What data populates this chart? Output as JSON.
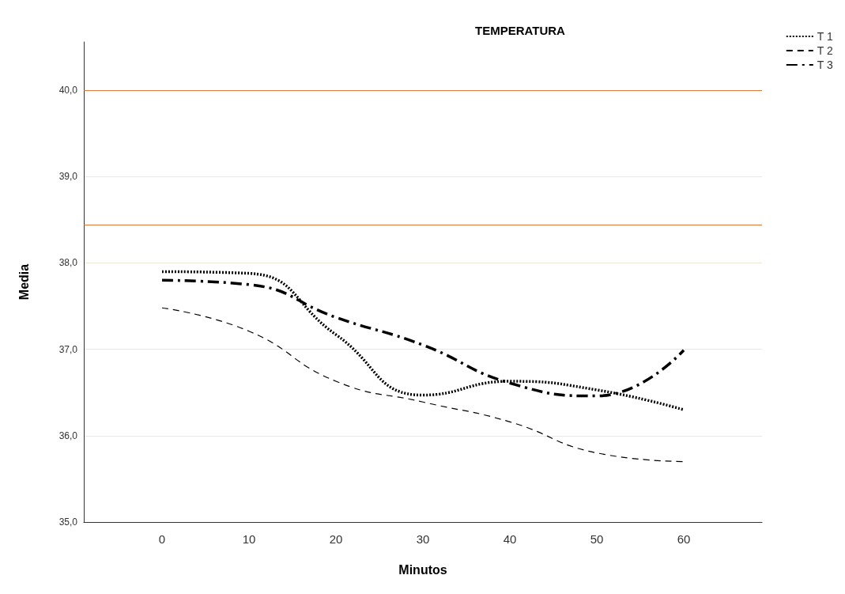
{
  "chart_data": {
    "type": "line",
    "title": "TEMPERATURA",
    "xlabel": "Minutos",
    "ylabel": "Media",
    "x": [
      0,
      10,
      20,
      30,
      40,
      50,
      60
    ],
    "series": [
      {
        "name": "T 1",
        "color": "#000000",
        "line_style": "dotted",
        "values": [
          37.9,
          37.88,
          37.17,
          36.47,
          36.63,
          36.53,
          36.3
        ]
      },
      {
        "name": "T 2",
        "color": "#000000",
        "line_style": "dashed",
        "values": [
          37.48,
          37.21,
          36.63,
          36.39,
          36.16,
          35.8,
          35.7
        ]
      },
      {
        "name": "T 3",
        "color": "#000000",
        "line_style": "dashdot",
        "values": [
          37.8,
          37.75,
          37.37,
          37.05,
          36.61,
          36.46,
          36.99
        ]
      }
    ],
    "xlim": [
      -9,
      69
    ],
    "xticks": [
      0,
      10,
      20,
      30,
      40,
      50,
      60
    ],
    "ylim": [
      35,
      40.56
    ],
    "yticks": [
      {
        "value": 35,
        "label": "35,0"
      },
      {
        "value": 36,
        "label": "36,0"
      },
      {
        "value": 37,
        "label": "37,0"
      },
      {
        "value": 38,
        "label": "38,0"
      },
      {
        "value": 39,
        "label": "39,0"
      },
      {
        "value": 40,
        "label": "40,0"
      }
    ],
    "ref_lines": [
      {
        "axis": "y",
        "value": 40,
        "color": "#e07b39"
      },
      {
        "axis": "y",
        "value": 38.44,
        "color": "#e07b39"
      }
    ],
    "grid": "y",
    "legend": "top right",
    "marker": "none"
  }
}
